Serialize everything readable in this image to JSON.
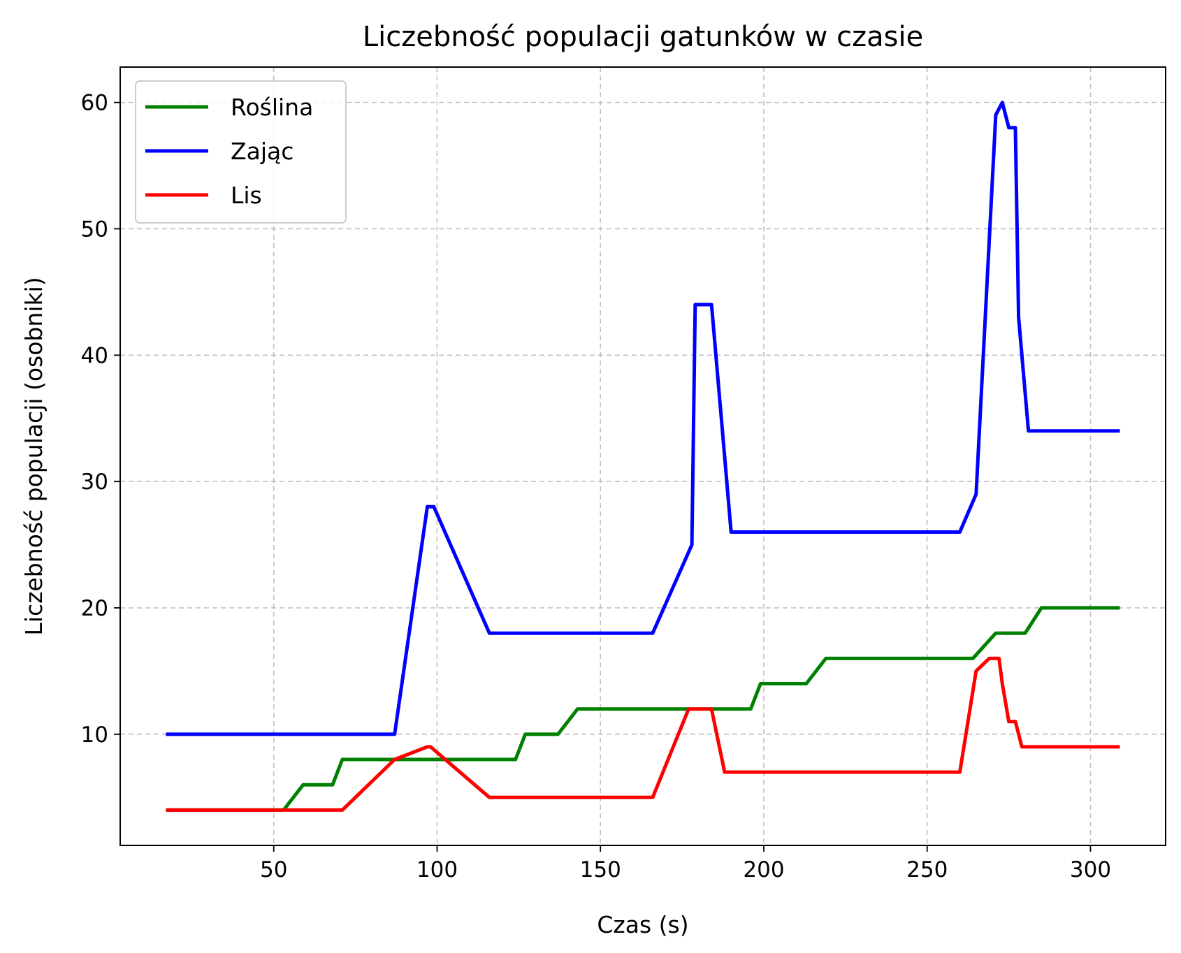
{
  "chart_data": {
    "type": "line",
    "title": "Liczebność populacji gatunków w czasie",
    "xlabel": "Czas (s)",
    "ylabel": "Liczebność populacji (osobniki)",
    "xlim": [
      3,
      323
    ],
    "ylim": [
      1.2,
      62.8
    ],
    "xticks": [
      50,
      100,
      150,
      200,
      250,
      300
    ],
    "yticks": [
      10,
      20,
      30,
      40,
      50,
      60
    ],
    "grid": true,
    "legend_position": "top-left",
    "series": [
      {
        "name": "Roślina",
        "color": "#008000",
        "x": [
          17,
          53,
          59,
          68,
          71,
          124,
          127,
          137,
          143,
          196,
          199,
          213,
          219,
          264,
          271,
          280,
          285,
          309
        ],
        "y": [
          4,
          4,
          6,
          6,
          8,
          8,
          10,
          10,
          12,
          12,
          14,
          14,
          16,
          16,
          18,
          18,
          20,
          20
        ]
      },
      {
        "name": "Zając",
        "color": "#0000ff",
        "x": [
          17,
          87,
          97,
          99,
          116,
          166,
          178,
          179,
          181,
          184,
          188,
          190,
          260,
          265,
          271,
          273,
          275,
          277,
          278,
          281,
          309
        ],
        "y": [
          10,
          10,
          28,
          28,
          18,
          18,
          25,
          44,
          44,
          44,
          32,
          26,
          26,
          29,
          59,
          60,
          58,
          58,
          43,
          34,
          34
        ]
      },
      {
        "name": "Lis",
        "color": "#ff0000",
        "x": [
          17,
          71,
          87,
          97,
          98,
          116,
          166,
          177,
          184,
          188,
          260,
          265,
          269,
          272,
          273,
          275,
          277,
          279,
          309
        ],
        "y": [
          4,
          4,
          8,
          9,
          9,
          5,
          5,
          12,
          12,
          7,
          7,
          15,
          16,
          16,
          14,
          11,
          11,
          9,
          9
        ]
      }
    ]
  }
}
